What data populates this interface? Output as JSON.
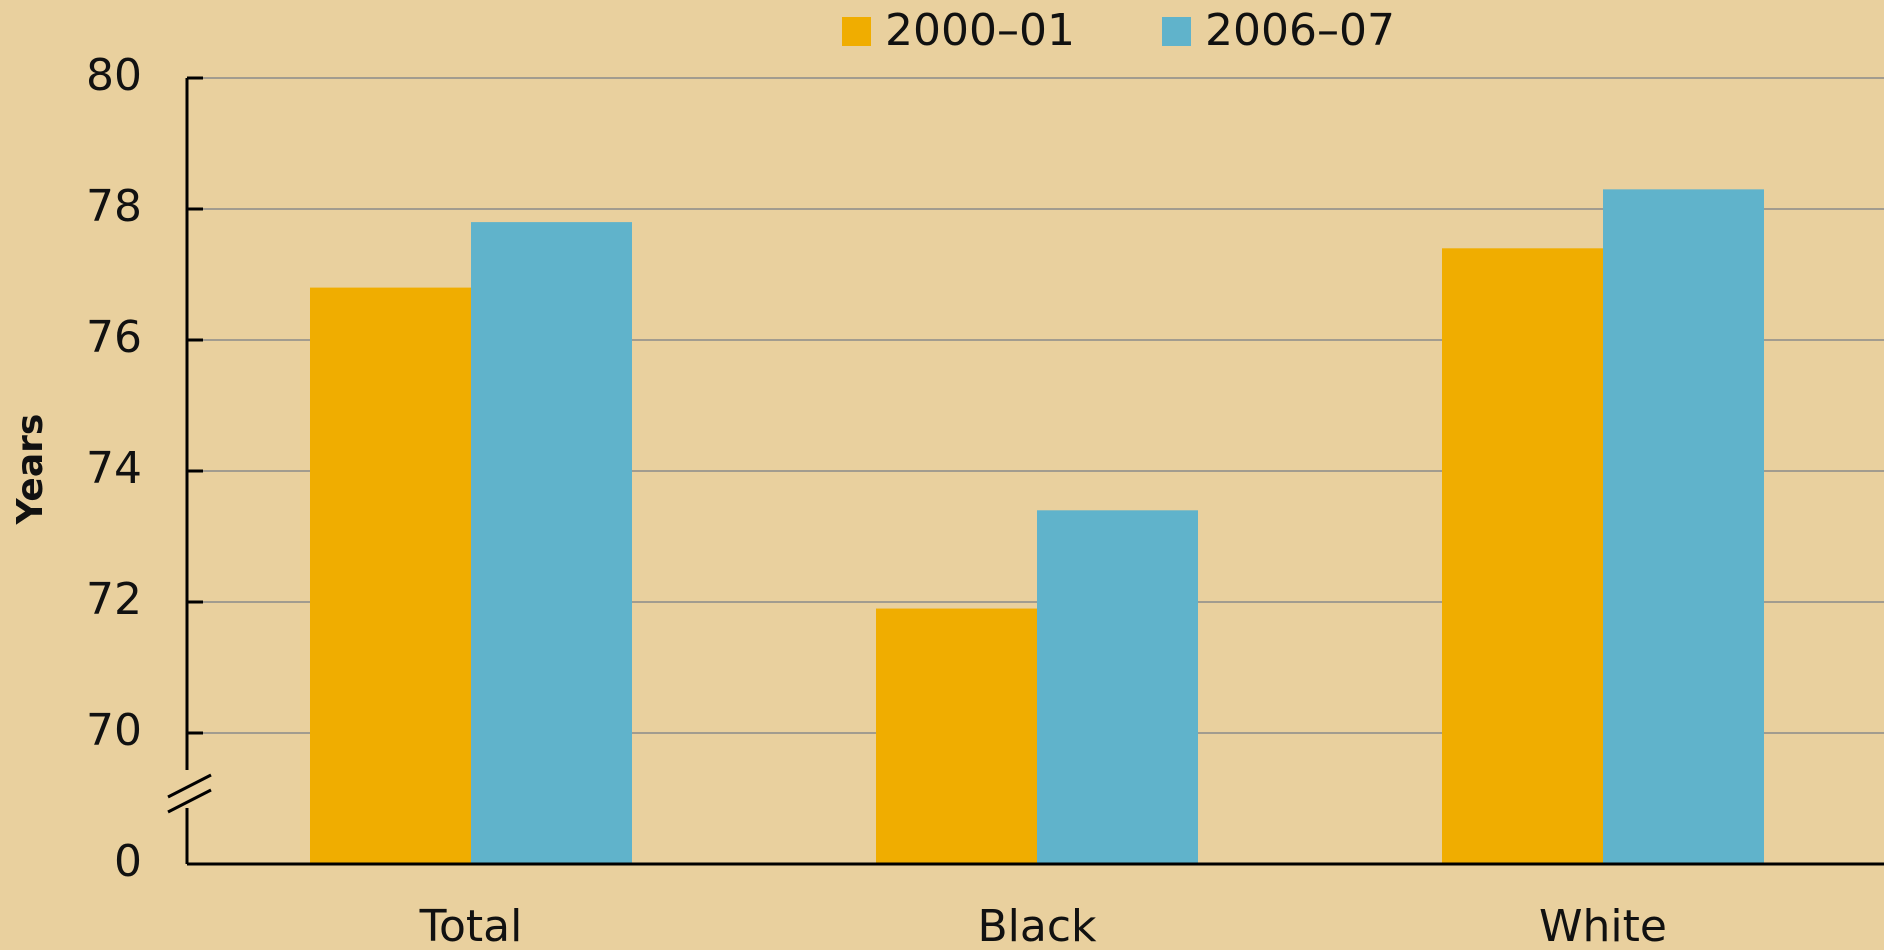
{
  "chart_data": {
    "type": "bar",
    "y_label": "Years",
    "categories": [
      "Total",
      "Black",
      "White"
    ],
    "series": [
      {
        "name": "2000–01",
        "color": "#f0ad00",
        "values": [
          76.8,
          71.9,
          77.4
        ]
      },
      {
        "name": "2006–07",
        "color": "#60b3cb",
        "values": [
          77.8,
          73.4,
          78.3
        ]
      }
    ],
    "ylim": [
      0,
      80
    ],
    "axis_break": [
      0,
      70
    ],
    "yticks": [
      0,
      70,
      72,
      74,
      76,
      78,
      80
    ],
    "grid": true,
    "legend": "top"
  }
}
